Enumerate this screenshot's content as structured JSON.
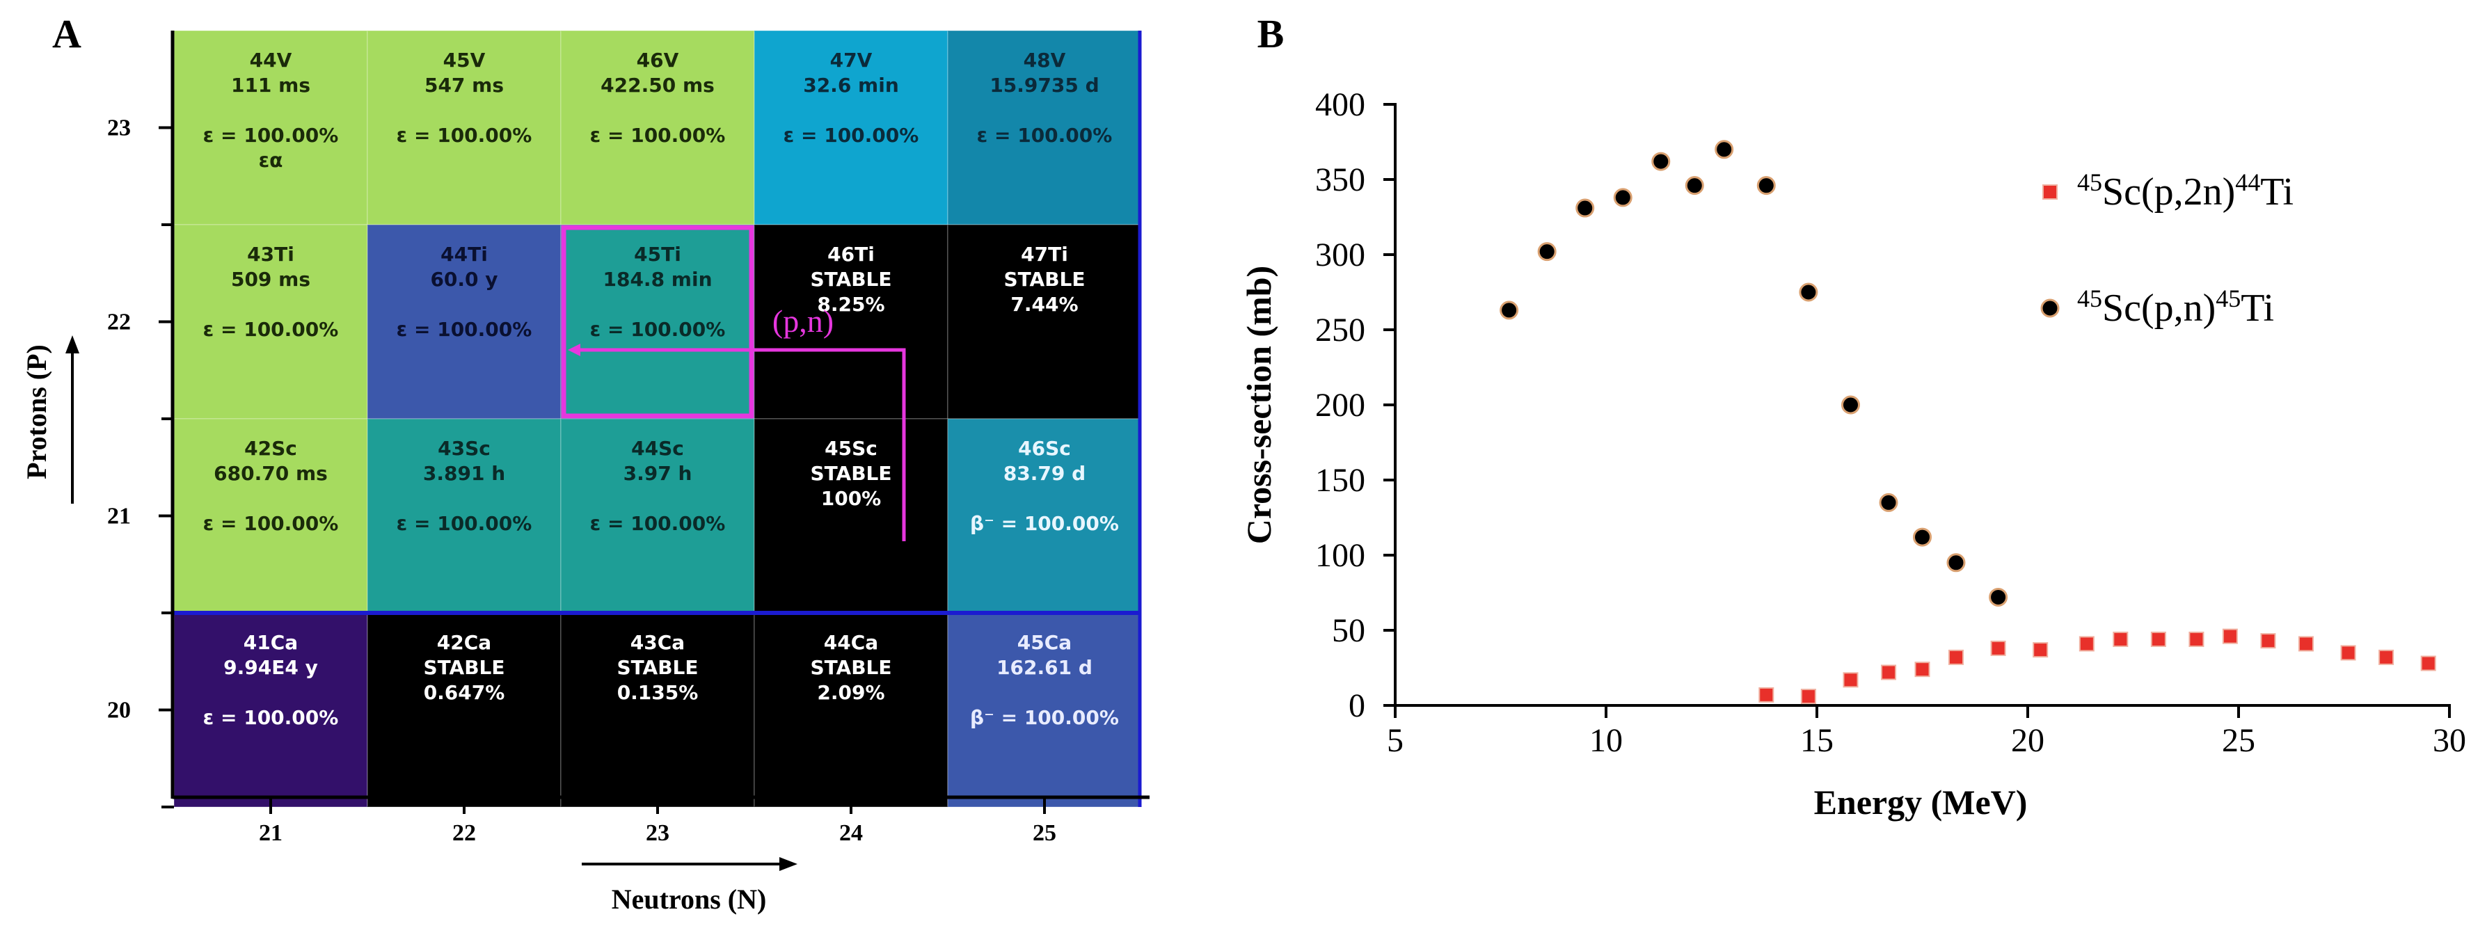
{
  "panel_a": {
    "label": "A",
    "x_axis_label": "Neutrons (N)",
    "y_axis_label": "Protons (P)",
    "x_ticks": [
      "21",
      "22",
      "23",
      "24",
      "25"
    ],
    "y_ticks": [
      "23",
      "22",
      "21",
      "20"
    ],
    "reaction_label": "(p,n)",
    "colors": {
      "light_green": "#a6db5f",
      "teal": "#1e9e96",
      "sky": "#0fa5cf",
      "ocean": "#1387aa",
      "blue": "#3c58ab",
      "purple": "#33106a",
      "black": "#000000",
      "steel": "#1a8fab",
      "highlight": "#e637de",
      "row_border": "#1b1bd0"
    },
    "rows": [
      {
        "protons": "23",
        "cells": [
          {
            "lines": [
              "44V",
              "111 ms",
              "",
              "ε = 100.00%",
              "εα"
            ],
            "color": "light_green",
            "text_color": "#1a2a0a"
          },
          {
            "lines": [
              "45V",
              "547 ms",
              "",
              "ε = 100.00%"
            ],
            "color": "light_green",
            "text_color": "#1a2a0a"
          },
          {
            "lines": [
              "46V",
              "422.50 ms",
              "",
              "ε = 100.00%"
            ],
            "color": "light_green",
            "text_color": "#1a2a0a"
          },
          {
            "lines": [
              "47V",
              "32.6 min",
              "",
              "ε = 100.00%"
            ],
            "color": "sky",
            "text_color": "#0b2a3a"
          },
          {
            "lines": [
              "48V",
              "15.9735 d",
              "",
              "ε = 100.00%"
            ],
            "color": "ocean",
            "text_color": "#0b2a3a"
          }
        ]
      },
      {
        "protons": "22",
        "cells": [
          {
            "lines": [
              "43Ti",
              "509 ms",
              "",
              "ε = 100.00%"
            ],
            "color": "light_green",
            "text_color": "#1a2a0a"
          },
          {
            "lines": [
              "44Ti",
              "60.0 y",
              "",
              "ε = 100.00%"
            ],
            "color": "blue",
            "text_color": "#0a1030"
          },
          {
            "lines": [
              "45Ti",
              "184.8 min",
              "",
              "ε = 100.00%"
            ],
            "color": "teal",
            "text_color": "#0a2a28"
          },
          {
            "lines": [
              "46Ti",
              "STABLE",
              "8.25%"
            ],
            "color": "black",
            "text_color": "#ffffff"
          },
          {
            "lines": [
              "47Ti",
              "STABLE",
              "7.44%"
            ],
            "color": "black",
            "text_color": "#ffffff"
          }
        ]
      },
      {
        "protons": "21",
        "cells": [
          {
            "lines": [
              "42Sc",
              "680.70 ms",
              "",
              "ε = 100.00%"
            ],
            "color": "light_green",
            "text_color": "#1a2a0a"
          },
          {
            "lines": [
              "43Sc",
              "3.891 h",
              "",
              "ε = 100.00%"
            ],
            "color": "teal",
            "text_color": "#0a2a28"
          },
          {
            "lines": [
              "44Sc",
              "3.97 h",
              "",
              "ε = 100.00%"
            ],
            "color": "teal",
            "text_color": "#0a2a28"
          },
          {
            "lines": [
              "45Sc",
              "STABLE",
              "100%"
            ],
            "color": "black",
            "text_color": "#ffffff"
          },
          {
            "lines": [
              "46Sc",
              "83.79 d",
              "",
              "β⁻ = 100.00%"
            ],
            "color": "steel",
            "text_color": "#e8f6ff"
          }
        ]
      },
      {
        "protons": "20",
        "cells": [
          {
            "lines": [
              "41Ca",
              "9.94E4 y",
              "",
              "ε = 100.00%"
            ],
            "color": "purple",
            "text_color": "#ffffff"
          },
          {
            "lines": [
              "42Ca",
              "STABLE",
              "0.647%"
            ],
            "color": "black",
            "text_color": "#ffffff"
          },
          {
            "lines": [
              "43Ca",
              "STABLE",
              "0.135%"
            ],
            "color": "black",
            "text_color": "#ffffff"
          },
          {
            "lines": [
              "44Ca",
              "STABLE",
              "2.09%"
            ],
            "color": "black",
            "text_color": "#ffffff"
          },
          {
            "lines": [
              "45Ca",
              "162.61 d",
              "",
              "β⁻ = 100.00%"
            ],
            "color": "blue",
            "text_color": "#e8ecff"
          }
        ]
      }
    ]
  },
  "chart_data": {
    "type": "scatter",
    "panel_label": "B",
    "title": "",
    "xlabel": "Energy (MeV)",
    "ylabel": "Cross-section (mb)",
    "xlim": [
      5,
      30
    ],
    "ylim": [
      0,
      400
    ],
    "x_ticks": [
      5,
      10,
      15,
      20,
      25,
      30
    ],
    "y_ticks": [
      0,
      50,
      100,
      150,
      200,
      250,
      300,
      350,
      400
    ],
    "grid": false,
    "legend_position": "top-right",
    "series": [
      {
        "name": "45Sc(p,2n)44Ti",
        "legend": {
          "sup1": "45",
          "base1": "Sc(p,2n)",
          "sup2": "44",
          "base2": "Ti"
        },
        "marker": "square",
        "color": "#e8302a",
        "x": [
          13.8,
          14.8,
          15.8,
          16.7,
          17.5,
          18.3,
          19.3,
          20.3,
          21.4,
          22.2,
          23.1,
          24.0,
          24.8,
          25.7,
          26.6,
          27.6,
          28.5,
          29.5
        ],
        "y": [
          7,
          6,
          17,
          22,
          24,
          32,
          38,
          37,
          41,
          44,
          44,
          44,
          46,
          43,
          41,
          35,
          32,
          28
        ]
      },
      {
        "name": "45Sc(p,n)45Ti",
        "legend": {
          "sup1": "45",
          "base1": "Sc(p,n)",
          "sup2": "45",
          "base2": "Ti"
        },
        "marker": "circle",
        "color": "#000000",
        "x": [
          7.7,
          8.6,
          9.5,
          10.4,
          11.3,
          12.1,
          12.8,
          13.8,
          14.8,
          15.8,
          16.7,
          17.5,
          18.3,
          19.3
        ],
        "y": [
          263,
          302,
          331,
          338,
          362,
          346,
          370,
          346,
          275,
          200,
          135,
          112,
          95,
          72
        ]
      }
    ]
  }
}
